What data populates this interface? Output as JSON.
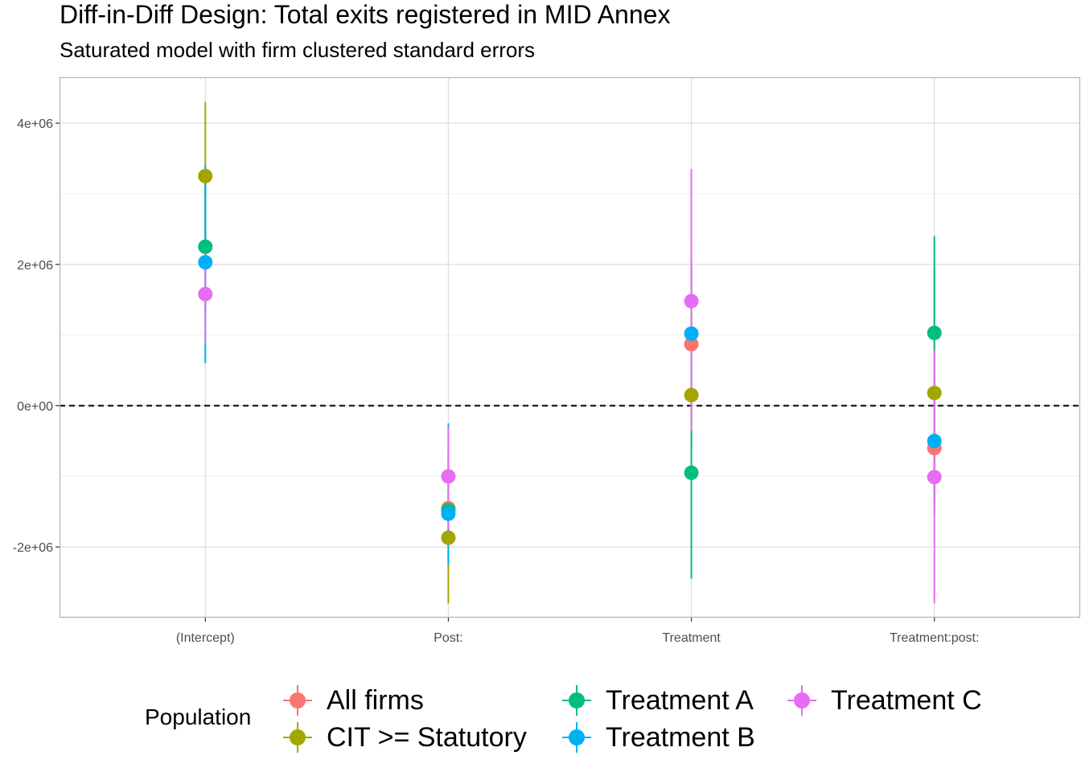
{
  "chart_data": {
    "type": "scatter",
    "title": "Diff-in-Diff Design: Total exits registered in MID Annex",
    "subtitle": "Saturated model with firm clustered standard errors",
    "categories": [
      "(Intercept)",
      "Post:",
      "Treatment",
      "Treatment:post:"
    ],
    "ylim": [
      -3000000,
      4650000
    ],
    "yticks": [
      -2000000,
      0,
      2000000,
      4000000
    ],
    "ytick_labels": [
      "-2e+06",
      "0e+00",
      "2e+06",
      "4e+06"
    ],
    "reference_line": 0,
    "grid": true,
    "legend": {
      "title": "Population",
      "placement": "bottom",
      "entries": [
        "All firms",
        "CIT >= Statutory",
        "Treatment A",
        "Treatment B",
        "Treatment C"
      ]
    },
    "series": [
      {
        "name": "All firms",
        "color": "#F8766D",
        "estimate": [
          2250000,
          -1450000,
          870000,
          -600000
        ],
        "lower": [
          1300000,
          -2300000,
          -600000,
          -1500000
        ],
        "upper": [
          3200000,
          -600000,
          2300000,
          300000
        ]
      },
      {
        "name": "CIT >= Statutory",
        "color": "#A3A500",
        "estimate": [
          3250000,
          -1870000,
          150000,
          180000
        ],
        "lower": [
          2200000,
          -2800000,
          -1650000,
          -1550000
        ],
        "upper": [
          4300000,
          -950000,
          1950000,
          1950000
        ]
      },
      {
        "name": "Treatment A",
        "color": "#00BF7D",
        "estimate": [
          2250000,
          -1480000,
          -950000,
          1030000
        ],
        "lower": [
          1300000,
          -2200000,
          -2450000,
          -350000
        ],
        "upper": [
          3150000,
          -750000,
          550000,
          2400000
        ]
      },
      {
        "name": "Treatment B",
        "color": "#00B0F6",
        "estimate": [
          2030000,
          -1530000,
          1020000,
          -500000
        ],
        "lower": [
          600000,
          -2250000,
          50000,
          -1350000
        ],
        "upper": [
          3400000,
          -250000,
          2000000,
          350000
        ]
      },
      {
        "name": "Treatment C",
        "color": "#E76BF3",
        "estimate": [
          1580000,
          -1000000,
          1480000,
          -1010000
        ],
        "lower": [
          900000,
          -1750000,
          -350000,
          -2800000
        ],
        "upper": [
          2250000,
          -300000,
          3350000,
          800000
        ]
      }
    ]
  }
}
